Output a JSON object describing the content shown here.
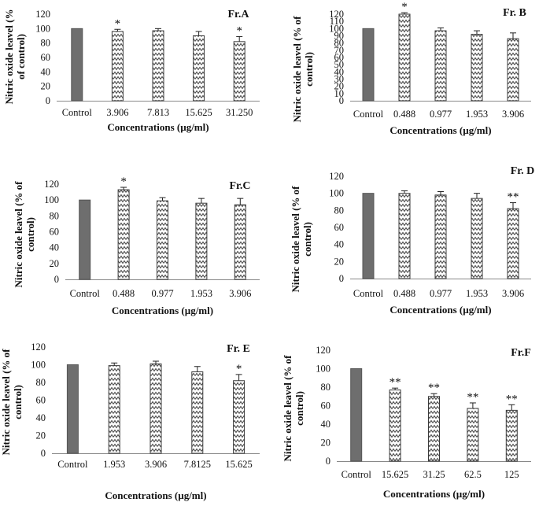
{
  "chart_data": [
    {
      "type": "bar",
      "title": "Fr.A",
      "xlabel": "Concentrations (µg/ml)",
      "ylabel": "Nitric oxide leavel (% of control)",
      "categories": [
        "Control",
        "3.906",
        "7.813",
        "15.625",
        "31.250"
      ],
      "values": [
        100,
        96,
        97,
        90,
        82
      ],
      "errors": [
        0,
        3,
        3,
        6,
        7
      ],
      "annotations": [
        "",
        "*",
        "",
        "",
        "*"
      ],
      "ylim": [
        0,
        120
      ],
      "yticks": [
        0,
        20,
        40,
        60,
        80,
        100,
        120
      ],
      "grid": false,
      "legend": "none",
      "colors": {
        "control": "#6e6e6e",
        "treated_fill": "#ffffff",
        "treated_stroke": "#3a3a3a",
        "zigzag": "#4a4a4a"
      }
    },
    {
      "type": "bar",
      "title": "Fr. B",
      "xlabel": "Concentrations (µg/ml)",
      "ylabel": "Nitric oxide leavel (% of control)",
      "categories": [
        "Control",
        "0.488",
        "0.977",
        "1.953",
        "3.906"
      ],
      "values": [
        100,
        120,
        97,
        92,
        86
      ],
      "errors": [
        0,
        2,
        4,
        5,
        8
      ],
      "annotations": [
        "",
        "*",
        "",
        "",
        ""
      ],
      "ylim": [
        0,
        120
      ],
      "yticks": [
        0,
        10,
        20,
        30,
        40,
        50,
        60,
        70,
        80,
        90,
        100,
        110,
        120
      ],
      "grid": false,
      "legend": "none"
    },
    {
      "type": "bar",
      "title": "Fr.C",
      "xlabel": "Concentrations (µg/ml)",
      "ylabel": "Nitric oxide leavel (% of control)",
      "categories": [
        "Control",
        "0.488",
        "0.977",
        "1.953",
        "3.906"
      ],
      "values": [
        100,
        113,
        99,
        96,
        94
      ],
      "errors": [
        0,
        3,
        4,
        6,
        8
      ],
      "annotations": [
        "",
        "*",
        "",
        "",
        ""
      ],
      "ylim": [
        0,
        120
      ],
      "yticks": [
        0,
        20,
        40,
        60,
        80,
        100,
        120
      ],
      "grid": false,
      "legend": "none"
    },
    {
      "type": "bar",
      "title": "Fr. D",
      "xlabel": "Concentrations (µg/ml)",
      "ylabel": "Nitric oxide leavel (% of control)",
      "categories": [
        "Control",
        "0.488",
        "0.977",
        "1.953",
        "3.906"
      ],
      "values": [
        100,
        100,
        98,
        94,
        82
      ],
      "errors": [
        0,
        3,
        4,
        6,
        7
      ],
      "annotations": [
        "",
        "",
        "",
        "",
        "**"
      ],
      "ylim": [
        0,
        120
      ],
      "yticks": [
        0,
        20,
        40,
        60,
        80,
        100,
        120
      ],
      "grid": false,
      "legend": "none"
    },
    {
      "type": "bar",
      "title": "Fr. E",
      "xlabel": "Concentrations (µg/ml)",
      "ylabel": "Nitric oxide leavel (% of control)",
      "categories": [
        "Control",
        "1.953",
        "3.906",
        "7.8125",
        "15.625"
      ],
      "values": [
        100,
        99,
        101,
        92,
        82
      ],
      "errors": [
        0,
        3,
        3,
        6,
        7
      ],
      "annotations": [
        "",
        "",
        "",
        "",
        "*"
      ],
      "ylim": [
        0,
        120
      ],
      "yticks": [
        0,
        20,
        40,
        60,
        80,
        100,
        120
      ],
      "grid": false,
      "legend": "none"
    },
    {
      "type": "bar",
      "title": "Fr.F",
      "xlabel": "Concentrations (µg/ml)",
      "ylabel": "Nitric oxide leavel (% of control)",
      "categories": [
        "Control",
        "15.625",
        "31.25",
        "62.5",
        "125"
      ],
      "values": [
        100,
        77,
        70,
        57,
        55
      ],
      "errors": [
        0,
        2,
        3,
        6,
        6
      ],
      "annotations": [
        "",
        "**",
        "**",
        "**",
        "**"
      ],
      "ylim": [
        0,
        120
      ],
      "yticks": [
        0,
        20,
        40,
        60,
        80,
        100,
        120
      ],
      "grid": false,
      "legend": "none"
    }
  ]
}
